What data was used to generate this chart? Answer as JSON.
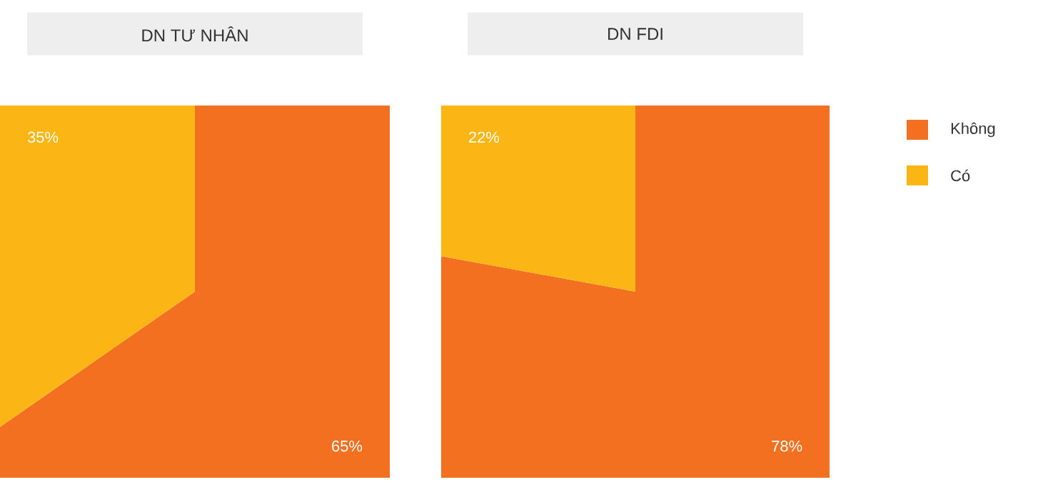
{
  "chart_data": [
    {
      "type": "pie",
      "title": "DN TƯ NHÂN",
      "categories": [
        null,
        null
      ],
      "values": [
        65,
        35
      ],
      "colors": [
        "#f37021",
        "#fbb616"
      ],
      "value_labels": [
        "65%",
        "35%"
      ]
    },
    {
      "type": "pie",
      "title": "DN FDI",
      "categories": [
        "Không",
        "Có"
      ],
      "values": [
        78,
        22
      ],
      "colors": [
        "#f37021",
        "#fbb616"
      ],
      "value_labels": [
        "78%",
        "22%"
      ],
      "legend": "right"
    }
  ]
}
